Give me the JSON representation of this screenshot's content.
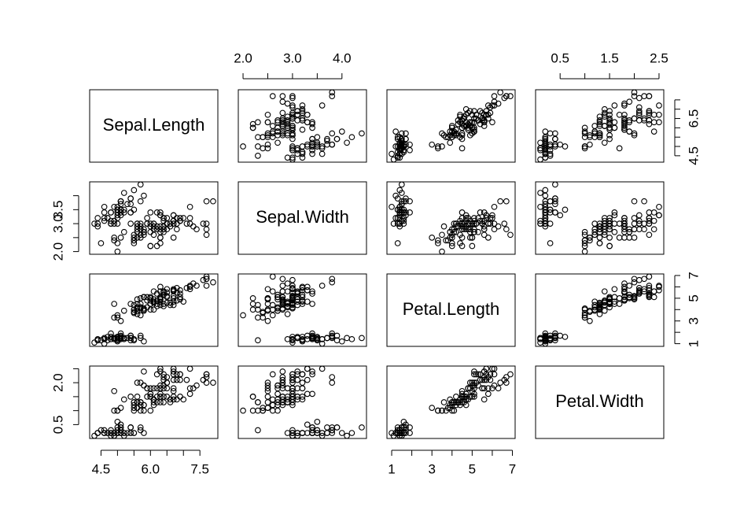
{
  "chart_data": {
    "type": "scatter_matrix",
    "variables": [
      {
        "name": "Sepal.Length",
        "lim": [
          4.156,
          8.044
        ],
        "hticks": [
          4.5,
          {
            "value": 6,
            "label": "6.0"
          },
          7.5
        ],
        "hminor": [
          5,
          5.5,
          6.5,
          7
        ],
        "vticks": [
          4.5,
          6.5
        ],
        "vminor": [
          5,
          5.5,
          6,
          7,
          7.5
        ],
        "values": [
          5.1,
          4.9,
          4.7,
          4.6,
          5.0,
          5.4,
          4.6,
          5.0,
          4.4,
          4.9,
          5.4,
          4.8,
          4.8,
          4.3,
          5.8,
          5.7,
          5.4,
          5.1,
          5.7,
          5.1,
          5.4,
          5.1,
          4.6,
          5.1,
          4.8,
          5.0,
          5.0,
          5.2,
          5.2,
          4.7,
          4.8,
          5.4,
          5.2,
          5.5,
          4.9,
          5.0,
          5.5,
          4.9,
          4.4,
          5.1,
          5.0,
          4.5,
          4.4,
          5.0,
          5.1,
          4.8,
          5.1,
          4.6,
          5.3,
          5.0,
          7.0,
          6.4,
          6.9,
          5.5,
          6.5,
          5.7,
          6.3,
          4.9,
          6.6,
          5.2,
          5.0,
          5.9,
          6.0,
          6.1,
          5.6,
          6.7,
          5.6,
          5.8,
          6.2,
          5.6,
          5.9,
          6.1,
          6.3,
          6.1,
          6.4,
          6.6,
          6.8,
          6.7,
          6.0,
          5.7,
          5.5,
          5.5,
          5.8,
          6.0,
          5.4,
          6.0,
          6.7,
          6.3,
          5.6,
          5.5,
          5.5,
          6.1,
          5.8,
          5.0,
          5.6,
          5.7,
          5.7,
          6.2,
          5.1,
          5.7,
          6.3,
          5.8,
          7.1,
          6.3,
          6.5,
          7.6,
          4.9,
          7.3,
          6.7,
          7.2,
          6.5,
          6.4,
          6.8,
          5.7,
          5.8,
          6.4,
          6.5,
          7.7,
          7.7,
          6.0,
          6.9,
          5.6,
          7.7,
          6.3,
          6.7,
          7.2,
          6.2,
          6.1,
          6.4,
          7.2,
          7.4,
          7.9,
          6.4,
          6.3,
          6.1,
          7.7,
          6.3,
          6.4,
          6.0,
          6.9,
          6.7,
          6.9,
          5.8,
          6.8,
          6.7,
          6.7,
          6.3,
          6.5,
          6.2,
          5.9
        ]
      },
      {
        "name": "Sepal.Width",
        "lim": [
          1.904,
          4.496
        ],
        "hticks": [
          {
            "value": 2,
            "label": "2.0"
          },
          {
            "value": 3,
            "label": "3.0"
          },
          {
            "value": 4,
            "label": "4.0"
          }
        ],
        "hminor": [
          2.5,
          3.5
        ],
        "vticks": [
          {
            "value": 2,
            "label": "2.0"
          },
          {
            "value": 3,
            "label": "3.0"
          },
          3.5
        ],
        "vminor": [
          2.5,
          4
        ],
        "values": [
          3.5,
          3.0,
          3.2,
          3.1,
          3.6,
          3.9,
          3.4,
          3.4,
          2.9,
          3.1,
          3.7,
          3.4,
          3.0,
          3.0,
          4.0,
          4.4,
          3.9,
          3.5,
          3.8,
          3.8,
          3.4,
          3.7,
          3.6,
          3.3,
          3.4,
          3.0,
          3.4,
          3.5,
          3.4,
          3.2,
          3.1,
          3.4,
          4.1,
          4.2,
          3.1,
          3.2,
          3.5,
          3.6,
          3.0,
          3.4,
          3.5,
          2.3,
          3.2,
          3.5,
          3.8,
          3.0,
          3.8,
          3.2,
          3.7,
          3.3,
          3.2,
          3.2,
          3.1,
          2.3,
          2.8,
          2.8,
          3.3,
          2.4,
          2.9,
          2.7,
          2.0,
          3.0,
          2.2,
          2.9,
          2.9,
          3.1,
          3.0,
          2.7,
          2.2,
          2.5,
          3.2,
          2.8,
          2.5,
          2.8,
          2.9,
          3.0,
          2.8,
          3.0,
          2.9,
          2.6,
          2.4,
          2.4,
          2.7,
          2.7,
          3.0,
          3.4,
          3.1,
          2.3,
          3.0,
          2.5,
          2.6,
          3.0,
          2.6,
          2.3,
          2.7,
          3.0,
          2.9,
          2.9,
          2.5,
          2.8,
          3.3,
          2.7,
          3.0,
          2.9,
          3.0,
          3.0,
          2.5,
          2.9,
          2.5,
          3.6,
          3.2,
          2.7,
          3.0,
          2.5,
          2.8,
          3.2,
          3.0,
          3.8,
          2.6,
          2.2,
          3.2,
          2.8,
          2.8,
          2.7,
          3.3,
          3.2,
          2.8,
          3.0,
          2.8,
          3.0,
          2.8,
          3.8,
          2.8,
          2.8,
          2.6,
          3.0,
          3.4,
          3.1,
          3.0,
          3.1,
          3.1,
          3.1,
          2.7,
          3.2,
          3.3,
          3.0,
          2.5,
          3.0,
          3.4,
          3.0
        ]
      },
      {
        "name": "Petal.Length",
        "lim": [
          0.764,
          7.136
        ],
        "hticks": [
          1,
          3,
          5,
          7
        ],
        "hminor": [
          2,
          4,
          6
        ],
        "vticks": [
          1,
          3,
          5,
          7
        ],
        "vminor": [
          2,
          4,
          6
        ],
        "values": [
          1.4,
          1.4,
          1.3,
          1.5,
          1.4,
          1.7,
          1.4,
          1.5,
          1.4,
          1.5,
          1.5,
          1.6,
          1.4,
          1.1,
          1.2,
          1.5,
          1.3,
          1.4,
          1.7,
          1.5,
          1.7,
          1.5,
          1.0,
          1.7,
          1.9,
          1.6,
          1.6,
          1.5,
          1.4,
          1.6,
          1.6,
          1.5,
          1.5,
          1.4,
          1.5,
          1.2,
          1.3,
          1.4,
          1.3,
          1.5,
          1.3,
          1.3,
          1.3,
          1.6,
          1.9,
          1.4,
          1.6,
          1.4,
          1.5,
          1.4,
          4.7,
          4.5,
          4.9,
          4.0,
          4.6,
          4.5,
          4.7,
          3.3,
          4.6,
          3.9,
          3.5,
          4.2,
          4.0,
          4.7,
          3.6,
          4.4,
          4.5,
          4.1,
          4.5,
          3.9,
          4.8,
          4.0,
          4.9,
          4.7,
          4.3,
          4.4,
          4.8,
          5.0,
          4.5,
          3.5,
          3.8,
          3.7,
          3.9,
          5.1,
          4.5,
          4.5,
          4.7,
          4.4,
          4.1,
          4.0,
          4.4,
          4.6,
          4.0,
          3.3,
          4.2,
          4.2,
          4.2,
          4.3,
          3.0,
          4.1,
          6.0,
          5.1,
          5.9,
          5.6,
          5.8,
          6.6,
          4.5,
          6.3,
          5.8,
          6.1,
          5.1,
          5.3,
          5.5,
          5.0,
          5.1,
          5.3,
          5.5,
          6.7,
          6.9,
          5.0,
          5.7,
          4.9,
          6.7,
          4.9,
          5.7,
          6.0,
          4.8,
          4.9,
          5.6,
          5.8,
          6.1,
          6.4,
          5.6,
          5.1,
          5.6,
          6.1,
          5.6,
          5.5,
          4.8,
          5.4,
          5.6,
          5.1,
          5.1,
          5.9,
          5.7,
          5.2,
          5.0,
          5.2,
          5.4,
          5.1
        ]
      },
      {
        "name": "Petal.Width",
        "lim": [
          0.004,
          2.596
        ],
        "hticks": [
          0.5,
          1.5,
          2.5
        ],
        "hminor": [
          1,
          2
        ],
        "vticks": [
          0.5,
          {
            "value": 2,
            "label": "2.0"
          }
        ],
        "vminor": [
          1,
          1.5,
          2.5
        ],
        "values": [
          0.2,
          0.2,
          0.2,
          0.2,
          0.2,
          0.4,
          0.3,
          0.2,
          0.2,
          0.1,
          0.2,
          0.2,
          0.1,
          0.1,
          0.2,
          0.4,
          0.4,
          0.3,
          0.3,
          0.3,
          0.2,
          0.4,
          0.2,
          0.5,
          0.2,
          0.2,
          0.4,
          0.2,
          0.2,
          0.2,
          0.2,
          0.4,
          0.1,
          0.2,
          0.2,
          0.2,
          0.2,
          0.1,
          0.2,
          0.2,
          0.3,
          0.3,
          0.2,
          0.6,
          0.4,
          0.3,
          0.2,
          0.2,
          0.2,
          0.2,
          1.4,
          1.5,
          1.5,
          1.3,
          1.5,
          1.3,
          1.6,
          1.0,
          1.3,
          1.4,
          1.0,
          1.5,
          1.0,
          1.4,
          1.3,
          1.4,
          1.5,
          1.0,
          1.5,
          1.1,
          1.8,
          1.3,
          1.5,
          1.2,
          1.3,
          1.4,
          1.4,
          1.7,
          1.5,
          1.0,
          1.1,
          1.0,
          1.2,
          1.6,
          1.5,
          1.6,
          1.5,
          1.3,
          1.3,
          1.3,
          1.2,
          1.4,
          1.2,
          1.0,
          1.3,
          1.2,
          1.3,
          1.3,
          1.1,
          1.3,
          2.5,
          1.9,
          2.1,
          1.8,
          2.2,
          2.1,
          1.7,
          1.8,
          1.8,
          2.5,
          2.0,
          1.9,
          2.1,
          2.0,
          2.4,
          2.3,
          1.8,
          2.2,
          2.3,
          1.5,
          2.3,
          2.0,
          2.0,
          1.8,
          2.1,
          1.8,
          1.8,
          1.8,
          2.1,
          1.6,
          1.9,
          2.0,
          2.2,
          1.5,
          1.4,
          2.3,
          2.4,
          1.8,
          1.8,
          2.1,
          2.4,
          2.3,
          1.9,
          2.3,
          2.5,
          2.3,
          1.9,
          2.0,
          2.3,
          1.8
        ]
      }
    ],
    "point_color": "#000000"
  }
}
